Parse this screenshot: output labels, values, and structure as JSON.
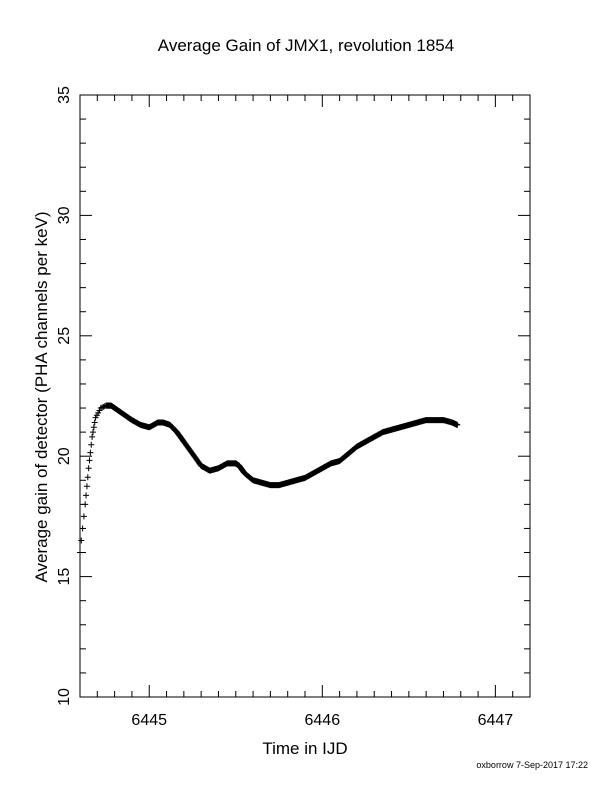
{
  "chart_data": {
    "type": "scatter",
    "title": "Average Gain of JMX1, revolution 1854",
    "xlabel": "Time in IJD",
    "ylabel": "Average gain of detector (PHA channels per keV)",
    "xlim": [
      6444.6,
      6447.2
    ],
    "ylim": [
      10,
      35
    ],
    "xticks": [
      "6445",
      "6446",
      "6447"
    ],
    "yticks": [
      "10",
      "15",
      "20",
      "25",
      "30",
      "35"
    ],
    "marker": "+",
    "grid": false,
    "series": [
      {
        "x": [
          6444.6,
          6444.63,
          6444.65,
          6444.67,
          6444.69,
          6444.72,
          6444.75,
          6444.78,
          6444.82,
          6444.86,
          6444.9,
          6444.95,
          6445.0,
          6445.05,
          6445.08,
          6445.12,
          6445.16,
          6445.2,
          6445.25,
          6445.3,
          6445.35,
          6445.4,
          6445.45,
          6445.5,
          6445.52,
          6445.55,
          6445.6,
          6445.65,
          6445.7,
          6445.75,
          6445.8,
          6445.85,
          6445.9,
          6445.95,
          6446.0,
          6446.05,
          6446.1,
          6446.15,
          6446.2,
          6446.25,
          6446.3,
          6446.35,
          6446.4,
          6446.45,
          6446.5,
          6446.55,
          6446.6,
          6446.65,
          6446.7,
          6446.75,
          6446.78
        ],
        "y": [
          16.0,
          18.0,
          19.5,
          20.8,
          21.6,
          22.0,
          22.1,
          22.1,
          21.9,
          21.7,
          21.5,
          21.3,
          21.2,
          21.4,
          21.4,
          21.3,
          21.0,
          20.6,
          20.1,
          19.6,
          19.4,
          19.5,
          19.7,
          19.7,
          19.6,
          19.3,
          19.0,
          18.9,
          18.8,
          18.8,
          18.9,
          19.0,
          19.1,
          19.3,
          19.5,
          19.7,
          19.8,
          20.1,
          20.4,
          20.6,
          20.8,
          21.0,
          21.1,
          21.2,
          21.3,
          21.4,
          21.5,
          21.5,
          21.5,
          21.4,
          21.3
        ]
      }
    ]
  },
  "credit": "oxborrow  7-Sep-2017 17:22"
}
